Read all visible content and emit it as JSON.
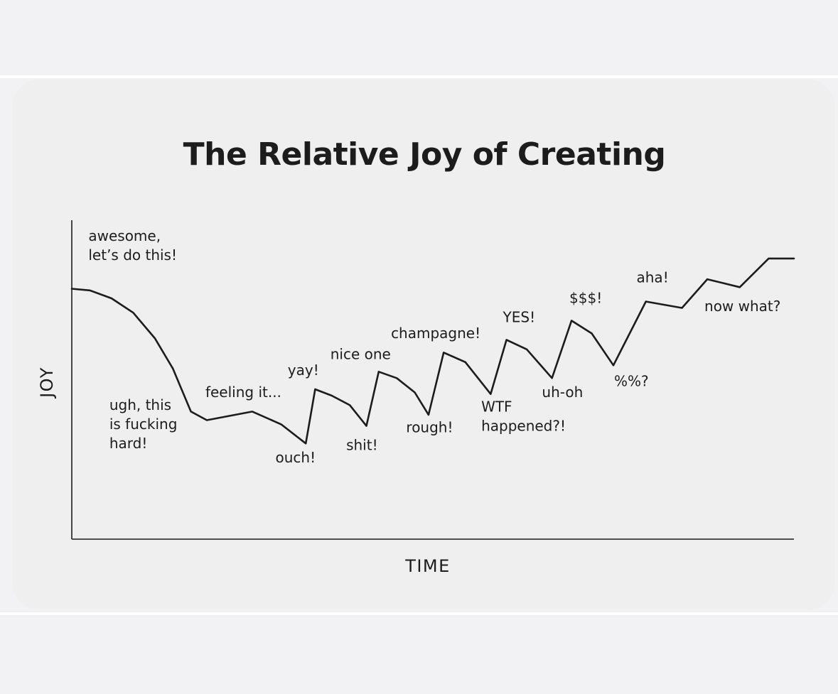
{
  "chart_data": {
    "type": "line",
    "title": "The Relative Joy of Creating",
    "xlabel": "TIME",
    "ylabel": "JOY",
    "grid": false,
    "legend": "none",
    "xlim": [
      0,
      100
    ],
    "ylim": [
      0,
      100
    ],
    "series": [
      {
        "values": [
          {
            "x": 0.0,
            "y": 78.5
          },
          {
            "x": 2.5,
            "y": 78.0
          },
          {
            "x": 5.5,
            "y": 75.5
          },
          {
            "x": 8.5,
            "y": 71.0
          },
          {
            "x": 11.5,
            "y": 63.0
          },
          {
            "x": 14.0,
            "y": 53.5
          },
          {
            "x": 16.5,
            "y": 40.0
          },
          {
            "x": 18.7,
            "y": 37.3
          },
          {
            "x": 25.0,
            "y": 40.0
          },
          {
            "x": 29.0,
            "y": 36.0
          },
          {
            "x": 32.4,
            "y": 30.0
          },
          {
            "x": 33.7,
            "y": 47.0
          },
          {
            "x": 36.0,
            "y": 45.0
          },
          {
            "x": 38.5,
            "y": 42.0
          },
          {
            "x": 40.8,
            "y": 35.5
          },
          {
            "x": 42.5,
            "y": 52.5
          },
          {
            "x": 45.0,
            "y": 50.5
          },
          {
            "x": 47.5,
            "y": 46.0
          },
          {
            "x": 49.4,
            "y": 39.0
          },
          {
            "x": 51.5,
            "y": 58.5
          },
          {
            "x": 54.5,
            "y": 55.5
          },
          {
            "x": 58.0,
            "y": 45.5
          },
          {
            "x": 60.2,
            "y": 62.5
          },
          {
            "x": 63.0,
            "y": 59.5
          },
          {
            "x": 66.5,
            "y": 50.5
          },
          {
            "x": 69.2,
            "y": 68.5
          },
          {
            "x": 72.0,
            "y": 64.5
          },
          {
            "x": 75.0,
            "y": 54.5
          },
          {
            "x": 79.5,
            "y": 74.5
          },
          {
            "x": 84.5,
            "y": 72.5
          },
          {
            "x": 88.0,
            "y": 81.5
          },
          {
            "x": 92.5,
            "y": 79.0
          },
          {
            "x": 96.5,
            "y": 88.0
          },
          {
            "x": 100.0,
            "y": 88.0
          }
        ]
      }
    ],
    "annotations": [
      {
        "text": "awesome,\nlet’s do this!",
        "x": 2.3,
        "y": 93.5
      },
      {
        "text": "ugh, this\nis fucking\nhard!",
        "x": 5.2,
        "y": 40.5
      },
      {
        "text": "feeling it...",
        "x": 18.5,
        "y": 44.5
      },
      {
        "text": "yay!",
        "x": 29.9,
        "y": 51.5
      },
      {
        "text": "ouch!",
        "x": 28.2,
        "y": 24.0
      },
      {
        "text": "nice one",
        "x": 35.8,
        "y": 56.5
      },
      {
        "text": "shit!",
        "x": 38.0,
        "y": 28.0
      },
      {
        "text": "champagne!",
        "x": 44.2,
        "y": 63.0
      },
      {
        "text": "rough!",
        "x": 46.3,
        "y": 33.5
      },
      {
        "text": "YES!",
        "x": 59.7,
        "y": 68.0
      },
      {
        "text": "WTF\nhappened?!",
        "x": 56.7,
        "y": 40.0
      },
      {
        "text": "$$$!",
        "x": 68.9,
        "y": 74.0
      },
      {
        "text": "uh-oh",
        "x": 65.1,
        "y": 44.5
      },
      {
        "text": "aha!",
        "x": 78.2,
        "y": 80.5
      },
      {
        "text": "%%?",
        "x": 75.1,
        "y": 48.0
      },
      {
        "text": "now what?",
        "x": 87.6,
        "y": 71.5
      }
    ]
  }
}
